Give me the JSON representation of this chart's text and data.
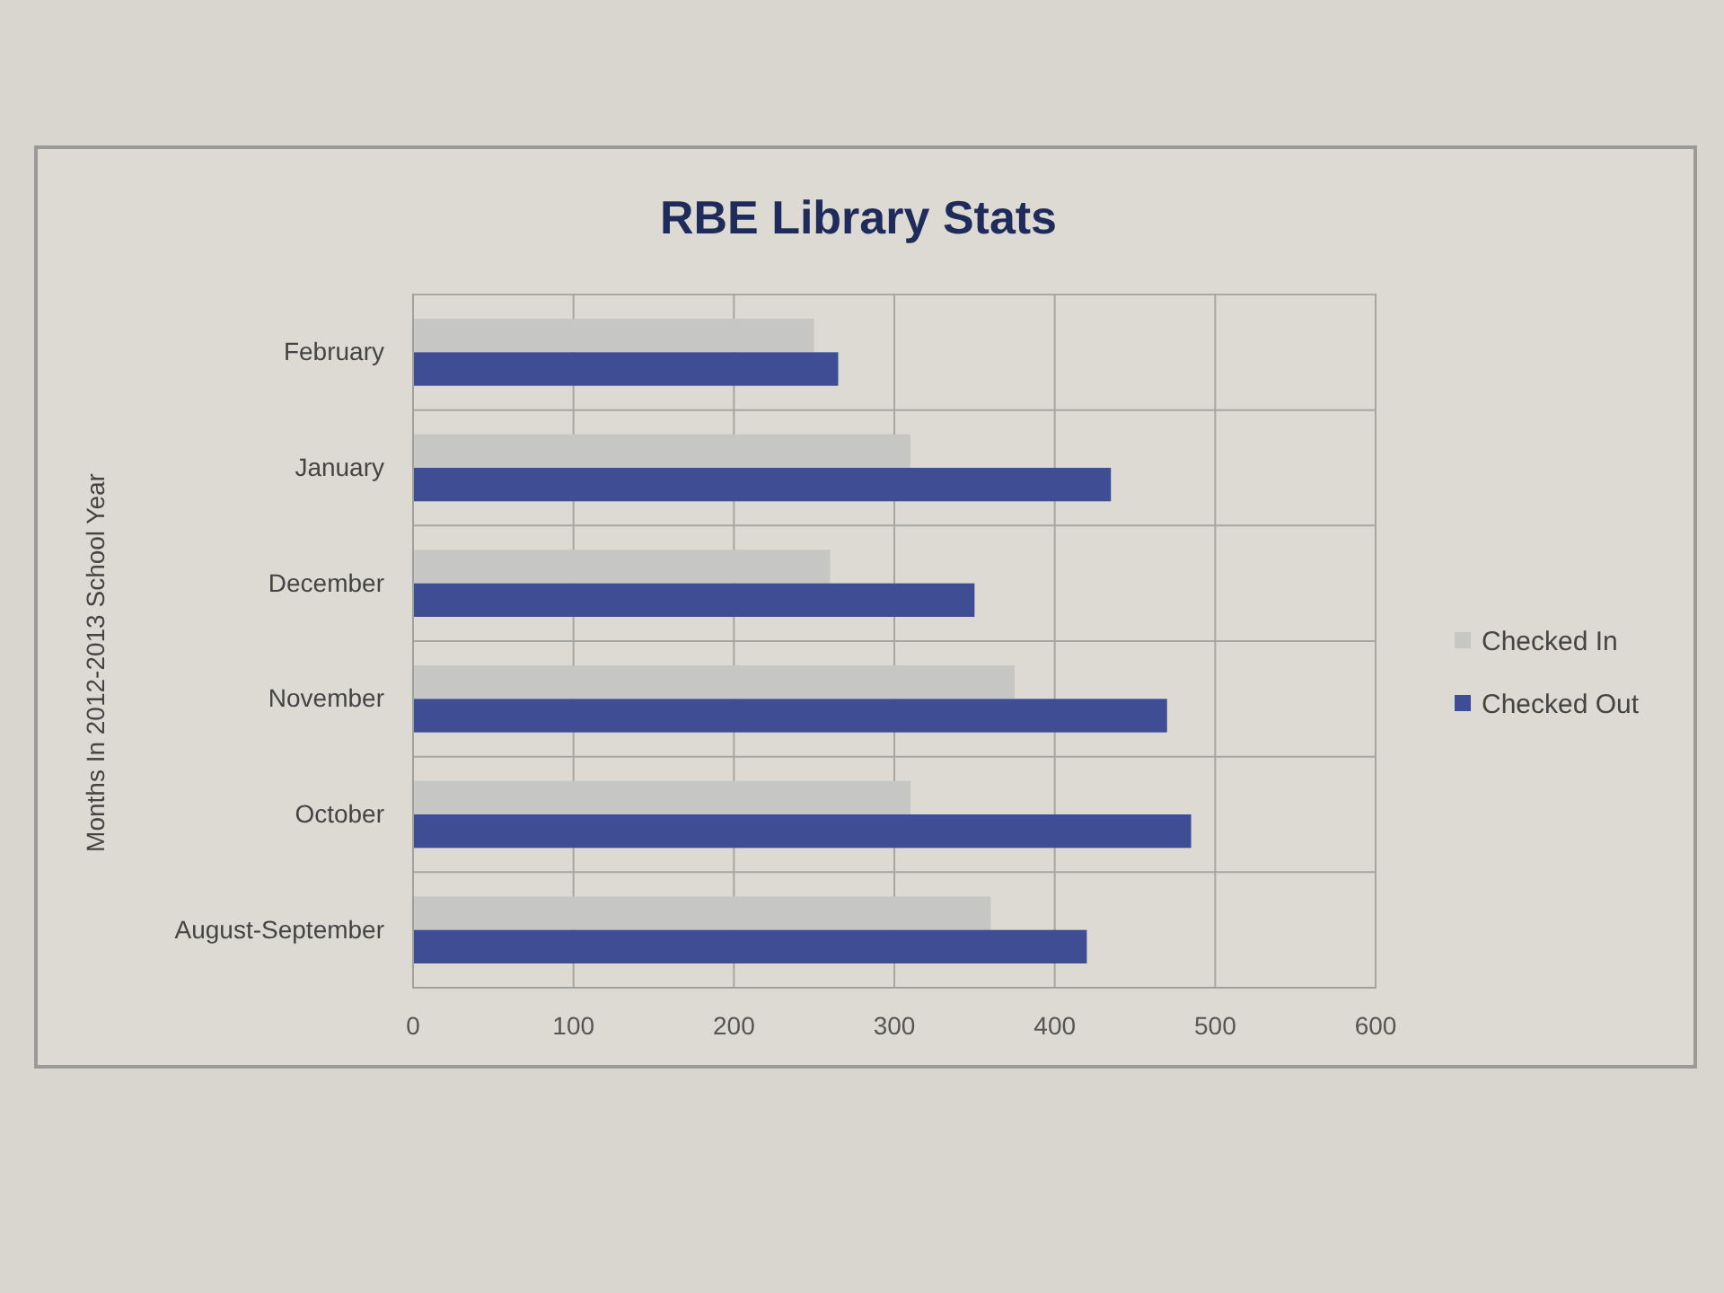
{
  "chart_data": {
    "type": "bar",
    "orientation": "horizontal",
    "title": "RBE Library Stats",
    "ylabel": "Months In 2012-2013 School Year",
    "categories": [
      "February",
      "January",
      "December",
      "November",
      "October",
      "August-September"
    ],
    "series": [
      {
        "name": "Checked In",
        "color": "#c6c6c4",
        "values": [
          250,
          310,
          260,
          375,
          310,
          360
        ]
      },
      {
        "name": "Checked Out",
        "color": "#3f4d94",
        "values": [
          265,
          435,
          350,
          470,
          485,
          420
        ]
      }
    ],
    "xlim": [
      0,
      600
    ],
    "xticks": [
      0,
      100,
      200,
      300,
      400,
      500,
      600
    ],
    "grid": true,
    "legend": "right"
  }
}
